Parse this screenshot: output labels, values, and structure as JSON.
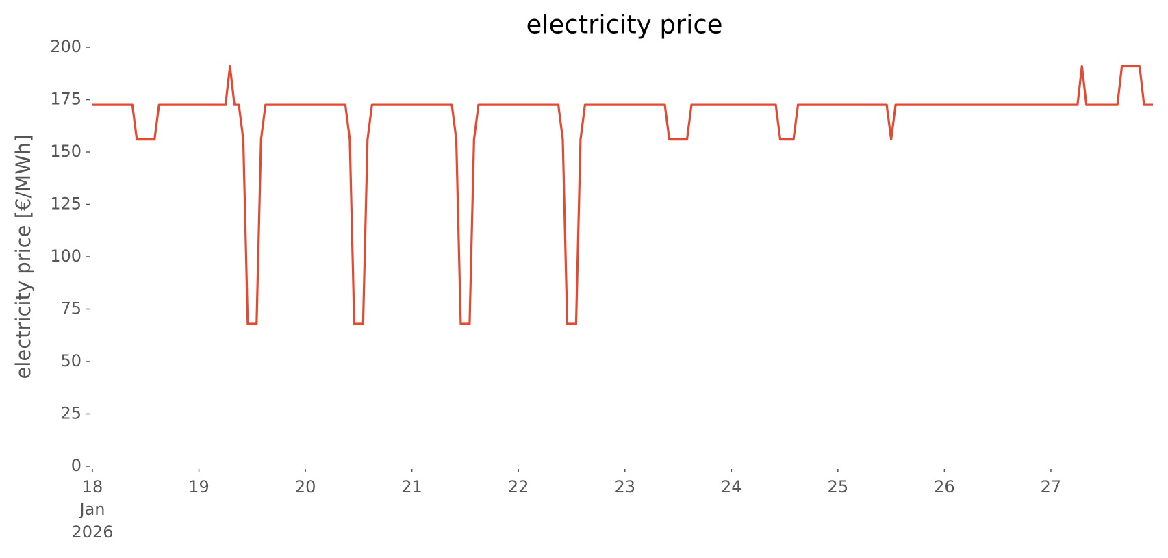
{
  "chart_data": {
    "type": "line",
    "title": "electricity price",
    "ylabel": "electricity price [€/MWh]",
    "x": [
      18,
      18.375,
      18.4167,
      18.5833,
      18.625,
      19.25,
      19.2917,
      19.3333,
      19.375,
      19.4167,
      19.4583,
      19.5417,
      19.5833,
      19.625,
      20.375,
      20.4167,
      20.4583,
      20.5417,
      20.5833,
      20.625,
      21.375,
      21.4167,
      21.4583,
      21.5417,
      21.5833,
      21.625,
      22.375,
      22.4167,
      22.4583,
      22.5417,
      22.5833,
      22.625,
      23.375,
      23.4167,
      23.5833,
      23.625,
      24.4167,
      24.4583,
      24.5833,
      24.625,
      25.4583,
      25.5,
      25.5417,
      27.25,
      27.2917,
      27.3333,
      27.625,
      27.6667,
      27.8333,
      27.875,
      27.9583
    ],
    "series": [
      {
        "name": "electricity price",
        "color": "#e24a33",
        "values": [
          172.5,
          172.5,
          156,
          156,
          172.5,
          172.5,
          191,
          172.5,
          172.5,
          156,
          68,
          68,
          156,
          172.5,
          172.5,
          156,
          68,
          68,
          156,
          172.5,
          172.5,
          156,
          68,
          68,
          156,
          172.5,
          172.5,
          156,
          68,
          68,
          156,
          172.5,
          172.5,
          156,
          156,
          172.5,
          172.5,
          156,
          156,
          172.5,
          172.5,
          156,
          172.5,
          172.5,
          191,
          172.5,
          172.5,
          191,
          191,
          172.5,
          172.5
        ]
      }
    ],
    "xlim": [
      18,
      27.9583
    ],
    "xticks": [
      {
        "value": 18,
        "label": "18\nJan\n2026"
      },
      19,
      20,
      21,
      22,
      23,
      24,
      25,
      26,
      27
    ],
    "ylim": [
      0,
      200
    ],
    "yticks": [
      0,
      25,
      50,
      75,
      100,
      125,
      150,
      175,
      200
    ],
    "grid": false
  }
}
